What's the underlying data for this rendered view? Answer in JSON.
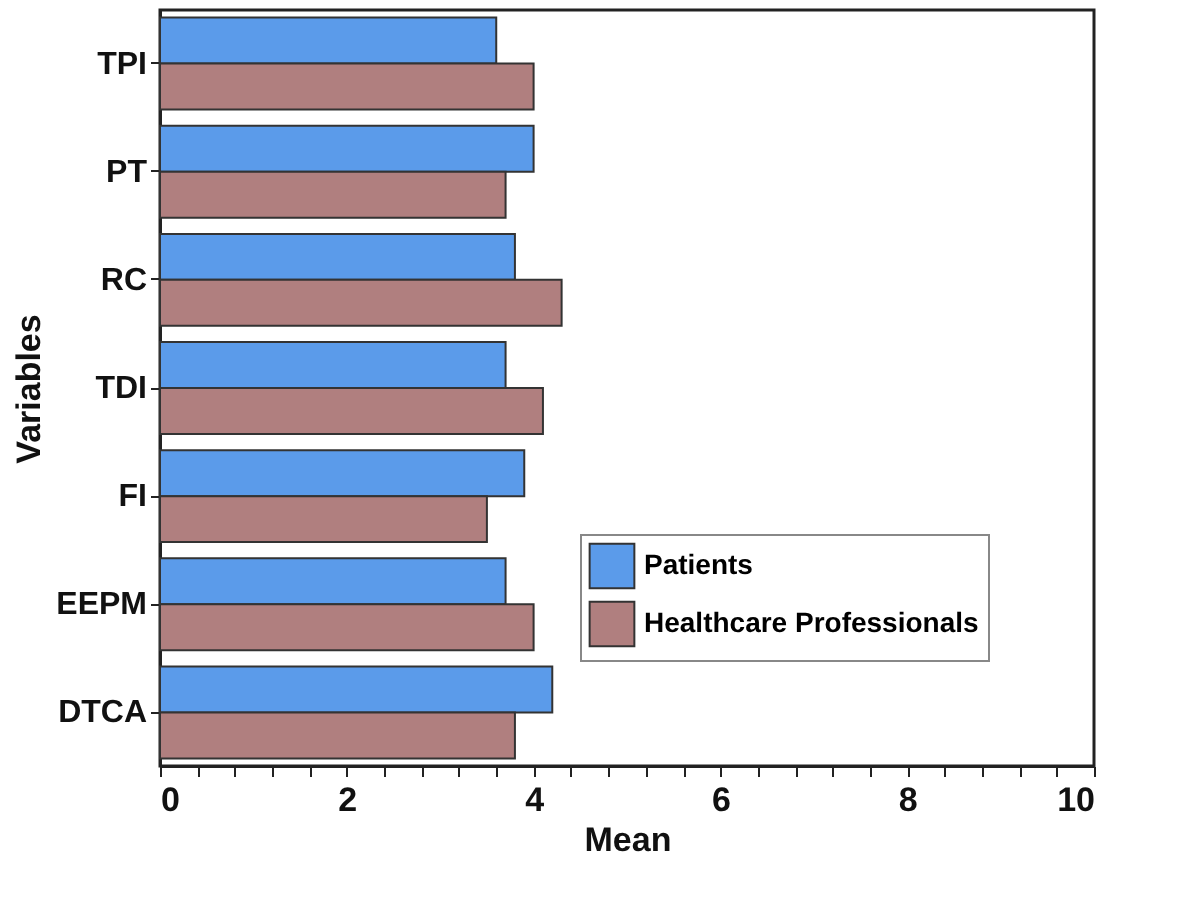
{
  "chart_data": {
    "type": "bar",
    "orientation": "horizontal",
    "xlabel": "Mean",
    "ylabel": "Variables",
    "categories": [
      "TPI",
      "PT",
      "RC",
      "TDI",
      "FI",
      "EEPM",
      "DTCA"
    ],
    "series": [
      {
        "name": "Patients",
        "color": "#5b9bea",
        "values": [
          3.6,
          4.0,
          3.8,
          3.7,
          3.9,
          3.7,
          4.2
        ]
      },
      {
        "name": "Healthcare Professionals",
        "color": "#b07f7f",
        "values": [
          4.0,
          3.7,
          4.3,
          4.1,
          3.5,
          4.0,
          3.8
        ]
      }
    ],
    "xlim": [
      0,
      10
    ],
    "xticks": [
      0,
      {
        "value": 0.4,
        "label": null
      },
      {
        "value": 0.8,
        "label": null
      },
      {
        "value": 1.2,
        "label": null
      },
      {
        "value": 1.6,
        "label": null
      },
      2,
      {
        "value": 2.4,
        "label": null
      },
      {
        "value": 2.8,
        "label": null
      },
      {
        "value": 3.2,
        "label": null
      },
      {
        "value": 3.6,
        "label": null
      },
      4,
      {
        "value": 4.4,
        "label": null
      },
      {
        "value": 4.8,
        "label": null
      },
      {
        "value": 5.2,
        "label": null
      },
      {
        "value": 5.6,
        "label": null
      },
      6,
      {
        "value": 6.4,
        "label": null
      },
      {
        "value": 6.8,
        "label": null
      },
      {
        "value": 7.2,
        "label": null
      },
      {
        "value": 7.6,
        "label": null
      },
      8,
      {
        "value": 8.4,
        "label": null
      },
      {
        "value": 8.8,
        "label": null
      },
      {
        "value": 9.2,
        "label": null
      },
      {
        "value": 9.6,
        "label": null
      },
      10
    ],
    "legend": "bottom right",
    "grid": false
  }
}
